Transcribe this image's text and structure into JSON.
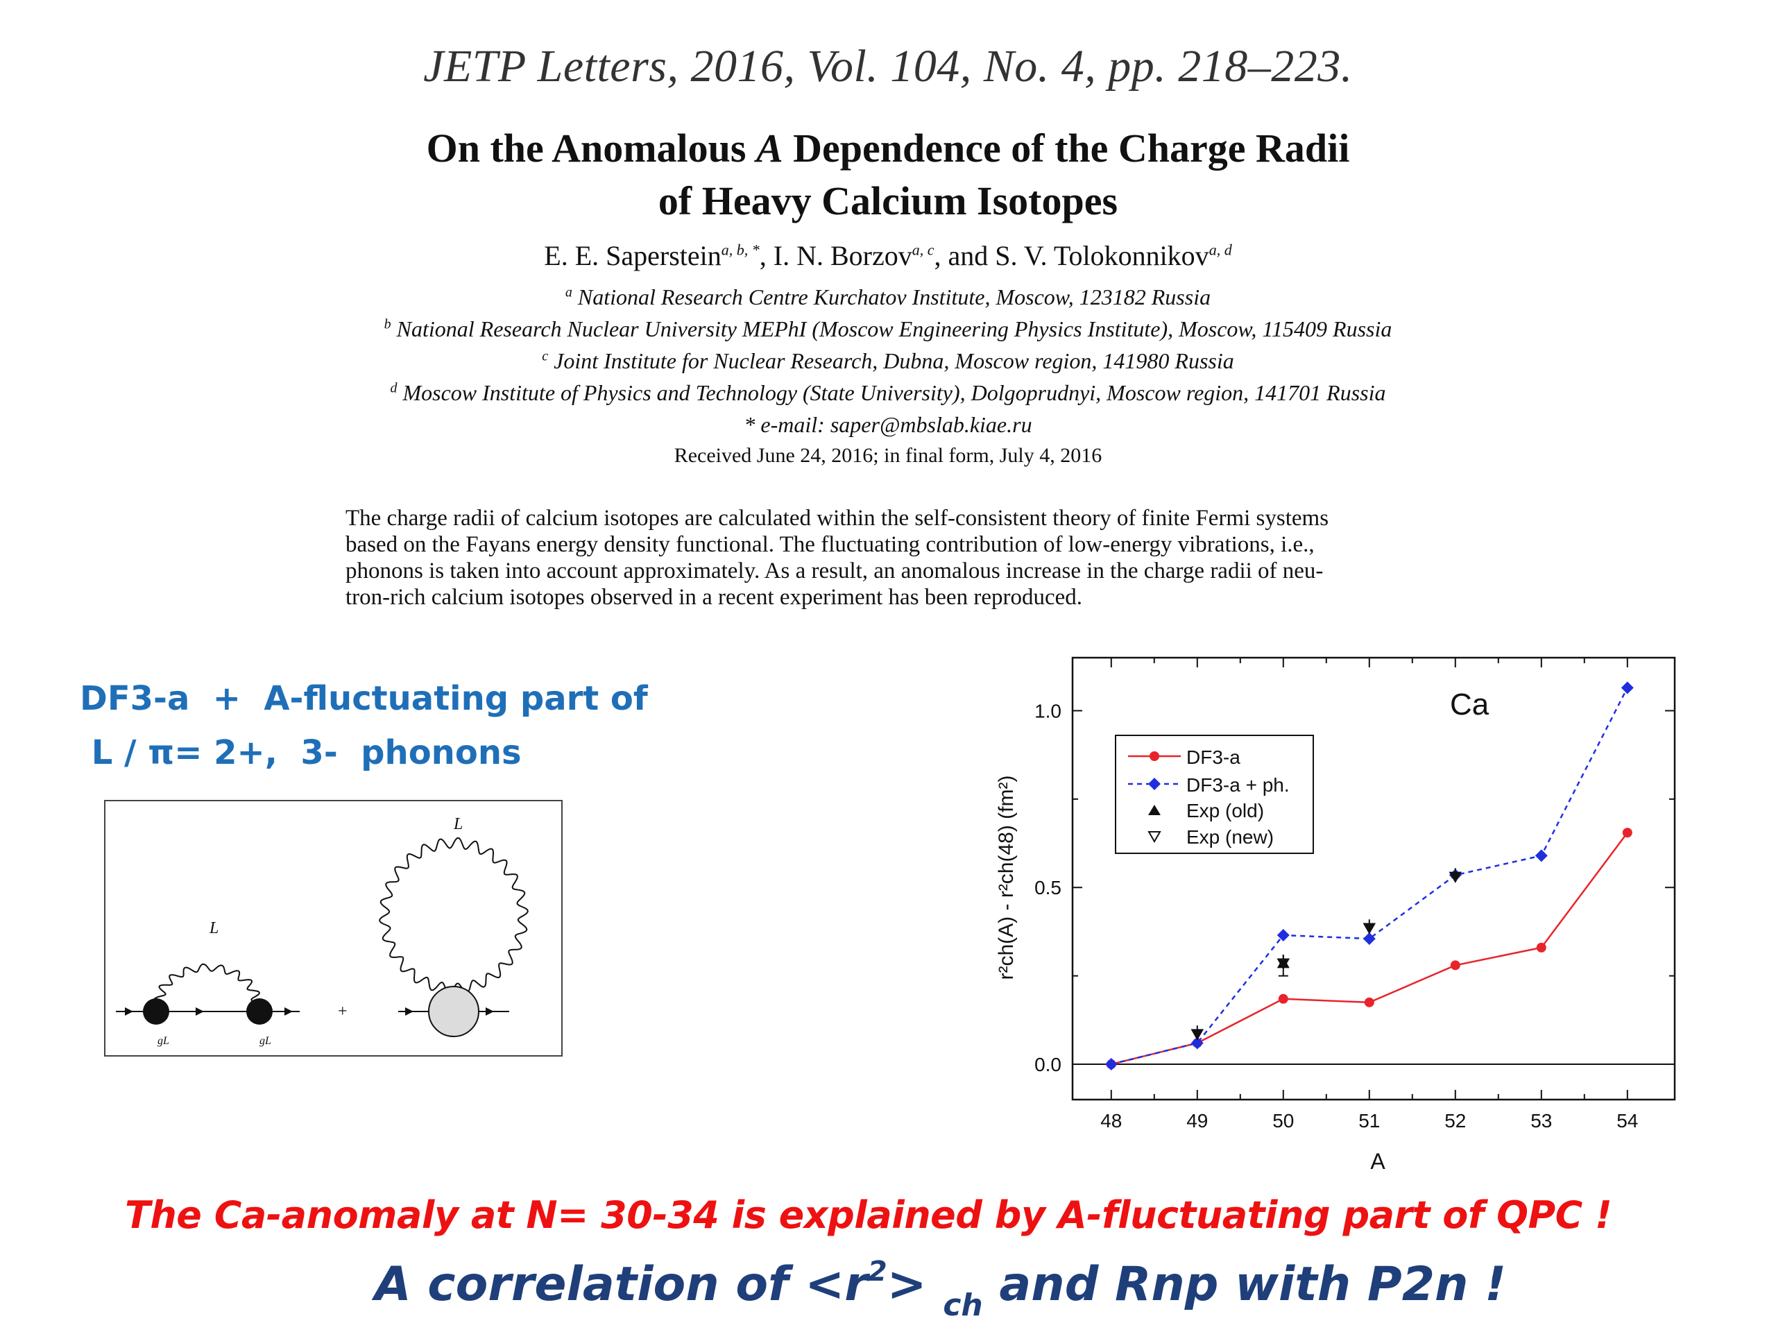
{
  "journal": "JETP Letters, 2016, Vol. 104, No. 4, pp. 218–223.",
  "title": {
    "part1": "On the Anomalous ",
    "italic": "A",
    "part2": " Dependence of the Charge Radii",
    "line2": "of Heavy Calcium Isotopes"
  },
  "authors": {
    "a1": "E. E. Saperstein",
    "a1_sup": "a, b, *",
    "sep1": ", I. N. Borzov",
    "a2_sup": "a, c",
    "sep2": ", and S. V. Tolokonnikov",
    "a3_sup": "a, d"
  },
  "affiliations": [
    {
      "mark": "a",
      "text": " National Research Centre Kurchatov Institute, Moscow, 123182 Russia"
    },
    {
      "mark": "b",
      "text": " National Research Nuclear University MEPhI (Moscow Engineering Physics Institute), Moscow, 115409 Russia"
    },
    {
      "mark": "c",
      "text": " Joint Institute for Nuclear Research, Dubna, Moscow region, 141980 Russia"
    },
    {
      "mark": "d",
      "text": " Moscow Institute of Physics and Technology (State University), Dolgoprudnyi, Moscow region, 141701 Russia"
    },
    {
      "mark": "",
      "text": "* e-mail: saper@mbslab.kiae.ru"
    }
  ],
  "received": "Received June 24, 2016; in final form, July 4, 2016",
  "abstract_lines": [
    "The charge radii of calcium isotopes are calculated within the self-consistent theory of finite Fermi systems",
    "based on the Fayans energy density functional. The fluctuating contribution of low-energy vibrations, i.e.,",
    "phonons is taken into account approximately. As a result, an anomalous increase in the charge radii of neu-",
    "tron-rich calcium isotopes observed in a recent experiment has been reproduced."
  ],
  "heading": {
    "line1": "DF3-a  +  A-fluctuating part of",
    "line2": " L / π= 2+,  3-  phonons"
  },
  "diagram": {
    "label_L_left": "L",
    "label_L_right": "L",
    "label_g1": "gL",
    "label_g2": "gL",
    "plus": "+"
  },
  "chart_data": {
    "type": "line",
    "title": "Ca",
    "xlabel": "A",
    "ylabel": "r²ch(A) - r²ch(48) (fm²)",
    "x": [
      48,
      49,
      50,
      51,
      52,
      53,
      54
    ],
    "xlim": [
      47.55,
      54.55
    ],
    "ylim": [
      -0.1,
      1.15
    ],
    "yticks": [
      0.0,
      0.5,
      1.0
    ],
    "ytick_labels": [
      "0.0",
      "0.5",
      "1.0"
    ],
    "xtick_labels": [
      "48",
      "49",
      "50",
      "51",
      "52",
      "53",
      "54"
    ],
    "series": [
      {
        "name": "DF3-a",
        "values": [
          0.0,
          0.06,
          0.185,
          0.175,
          0.28,
          0.33,
          0.655
        ],
        "color": "#e8242a",
        "style": "solid",
        "marker": "circle"
      },
      {
        "name": "DF3-a + ph.",
        "values": [
          0.0,
          0.06,
          0.365,
          0.355,
          0.535,
          0.59,
          1.065
        ],
        "color": "#1f2fe0",
        "style": "dashed",
        "marker": "diamond"
      }
    ],
    "experiment": [
      {
        "name": "Exp (old)",
        "marker": "triangle-up",
        "points": [
          {
            "x": 50,
            "y": 0.28,
            "err": 0.03
          }
        ]
      },
      {
        "name": "Exp (new)",
        "marker": "triangle-down",
        "points": [
          {
            "x": 49,
            "y": 0.09
          },
          {
            "x": 50,
            "y": 0.29
          },
          {
            "x": 51,
            "y": 0.39
          },
          {
            "x": 52,
            "y": 0.535
          }
        ]
      }
    ],
    "legend_labels": [
      "DF3-a",
      "DF3-a + ph.",
      "Exp (old)",
      "Exp (new)"
    ],
    "legend_position": "top-left"
  },
  "conclusion": {
    "red": "The Ca-anomaly at N= 30-34  is explained by A-fluctuating part of QPC !",
    "navy_a": "A correlation of <r",
    "navy_sup": "2",
    "navy_b": "> ",
    "navy_sub": "ch",
    "navy_c": "   and Rnp  with  P2n   !"
  }
}
